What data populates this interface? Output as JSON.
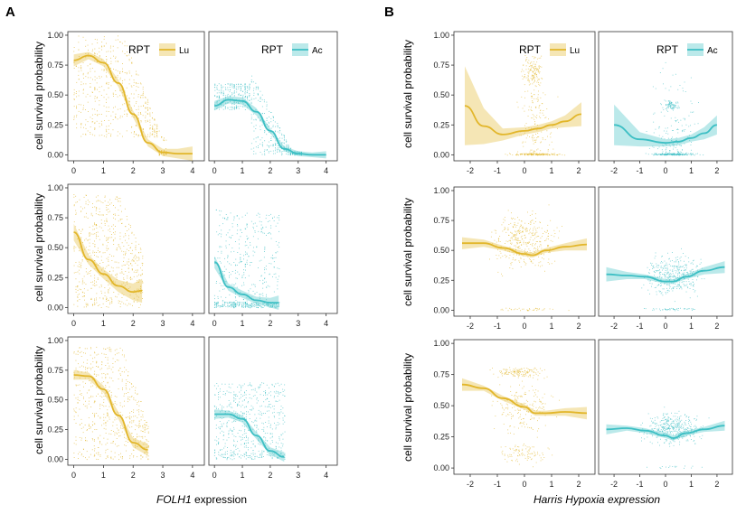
{
  "figure": {
    "panel_a_label": "A",
    "panel_b_label": "B",
    "ylabel": "cell survival probability",
    "a_xlabel_gene": "FOLH1",
    "a_xlabel_rest": " expression",
    "b_xlabel": "Harris Hypoxia expression",
    "legend_title": "RPT",
    "lu_label": "Lu",
    "ac_label": "Ac"
  },
  "colors": {
    "lu": "#E2B62A",
    "ac": "#3DBFC4"
  },
  "chart_data": [
    {
      "type": "scatter",
      "panel": "A",
      "row": 1,
      "series": "Lu",
      "legend": true,
      "xlabel": "FOLH1 expression",
      "ylabel": "cell survival probability",
      "xlim": [
        -0.2,
        4.4
      ],
      "ylim": [
        -0.05,
        1.03
      ],
      "xticks": [
        0,
        1,
        2,
        3,
        4
      ],
      "yticks": [
        "0.00",
        "0.25",
        "0.50",
        "0.75",
        "1.00"
      ],
      "fit": [
        [
          0,
          0.79
        ],
        [
          0.5,
          0.83
        ],
        [
          1,
          0.77
        ],
        [
          1.5,
          0.6
        ],
        [
          2,
          0.34
        ],
        [
          2.5,
          0.1
        ],
        [
          3,
          0.02
        ],
        [
          3.5,
          0.01
        ],
        [
          4,
          0.01
        ]
      ],
      "band": [
        [
          0,
          0.05
        ],
        [
          0.5,
          0.03
        ],
        [
          1,
          0.03
        ],
        [
          1.5,
          0.03
        ],
        [
          2,
          0.03
        ],
        [
          2.5,
          0.03
        ],
        [
          3,
          0.03
        ],
        [
          3.5,
          0.04
        ],
        [
          4,
          0.06
        ]
      ],
      "scatter": {
        "kind": "strip",
        "mode": "decline",
        "xmax": 3.1
      }
    },
    {
      "type": "scatter",
      "panel": "A",
      "row": 1,
      "series": "Ac",
      "legend": true,
      "xlabel": "FOLH1 expression",
      "ylabel": "cell survival probability",
      "xlim": [
        -0.2,
        4.4
      ],
      "ylim": [
        -0.05,
        1.03
      ],
      "xticks": [
        0,
        1,
        2,
        3,
        4
      ],
      "yticks": [
        "0.00",
        "0.25",
        "0.50",
        "0.75",
        "1.00"
      ],
      "fit": [
        [
          0,
          0.41
        ],
        [
          0.5,
          0.46
        ],
        [
          1,
          0.45
        ],
        [
          1.5,
          0.36
        ],
        [
          2,
          0.2
        ],
        [
          2.5,
          0.05
        ],
        [
          3,
          0.01
        ],
        [
          3.5,
          0.0
        ],
        [
          4,
          0.0
        ]
      ],
      "band": [
        [
          0,
          0.04
        ],
        [
          0.5,
          0.03
        ],
        [
          1,
          0.03
        ],
        [
          1.5,
          0.03
        ],
        [
          2,
          0.02
        ],
        [
          2.5,
          0.02
        ],
        [
          3,
          0.02
        ],
        [
          3.5,
          0.02
        ],
        [
          4,
          0.03
        ]
      ],
      "scatter": {
        "kind": "strip",
        "mode": "lowblock",
        "xmax": 3.1
      }
    },
    {
      "type": "scatter",
      "panel": "A",
      "row": 2,
      "series": "Lu",
      "legend": false,
      "xlabel": "FOLH1 expression",
      "ylabel": "cell survival probability",
      "xlim": [
        -0.2,
        4.4
      ],
      "ylim": [
        -0.05,
        1.03
      ],
      "xticks": [
        0,
        1,
        2,
        3,
        4
      ],
      "yticks": [
        "0.00",
        "0.25",
        "0.50",
        "0.75",
        "1.00"
      ],
      "fit": [
        [
          0,
          0.63
        ],
        [
          0.5,
          0.4
        ],
        [
          1,
          0.28
        ],
        [
          1.5,
          0.18
        ],
        [
          2,
          0.13
        ],
        [
          2.3,
          0.14
        ]
      ],
      "band": [
        [
          0,
          0.07
        ],
        [
          0.5,
          0.04
        ],
        [
          1,
          0.04
        ],
        [
          1.5,
          0.05
        ],
        [
          2,
          0.07
        ],
        [
          2.3,
          0.1
        ]
      ],
      "scatter": {
        "kind": "strip",
        "mode": "full",
        "xmax": 2.3
      }
    },
    {
      "type": "scatter",
      "panel": "A",
      "row": 2,
      "series": "Ac",
      "legend": false,
      "xlabel": "FOLH1 expression",
      "ylabel": "cell survival probability",
      "xlim": [
        -0.2,
        4.4
      ],
      "ylim": [
        -0.05,
        1.03
      ],
      "xticks": [
        0,
        1,
        2,
        3,
        4
      ],
      "yticks": [
        "0.00",
        "0.25",
        "0.50",
        "0.75",
        "1.00"
      ],
      "fit": [
        [
          0,
          0.38
        ],
        [
          0.5,
          0.17
        ],
        [
          1,
          0.11
        ],
        [
          1.5,
          0.06
        ],
        [
          2,
          0.04
        ],
        [
          2.3,
          0.04
        ]
      ],
      "band": [
        [
          0,
          0.05
        ],
        [
          0.5,
          0.03
        ],
        [
          1,
          0.03
        ],
        [
          1.5,
          0.03
        ],
        [
          2,
          0.04
        ],
        [
          2.3,
          0.06
        ]
      ],
      "scatter": {
        "kind": "strip",
        "mode": "low",
        "xmax": 2.3
      }
    },
    {
      "type": "scatter",
      "panel": "A",
      "row": 3,
      "series": "Lu",
      "legend": false,
      "xlabel": "FOLH1 expression",
      "ylabel": "cell survival probability",
      "xlim": [
        -0.2,
        4.4
      ],
      "ylim": [
        -0.05,
        1.03
      ],
      "xticks": [
        0,
        1,
        2,
        3,
        4
      ],
      "yticks": [
        "0.00",
        "0.25",
        "0.50",
        "0.75",
        "1.00"
      ],
      "fit": [
        [
          0,
          0.71
        ],
        [
          0.5,
          0.7
        ],
        [
          1,
          0.59
        ],
        [
          1.5,
          0.37
        ],
        [
          2,
          0.14
        ],
        [
          2.5,
          0.08
        ]
      ],
      "band": [
        [
          0,
          0.04
        ],
        [
          0.5,
          0.03
        ],
        [
          1,
          0.03
        ],
        [
          1.5,
          0.03
        ],
        [
          2,
          0.04
        ],
        [
          2.5,
          0.05
        ]
      ],
      "scatter": {
        "kind": "strip",
        "mode": "full",
        "xmax": 2.5
      }
    },
    {
      "type": "scatter",
      "panel": "A",
      "row": 3,
      "series": "Ac",
      "legend": false,
      "xlabel": "FOLH1 expression",
      "ylabel": "cell survival probability",
      "xlim": [
        -0.2,
        4.4
      ],
      "ylim": [
        -0.05,
        1.03
      ],
      "xticks": [
        0,
        1,
        2,
        3,
        4
      ],
      "yticks": [
        "0.00",
        "0.25",
        "0.50",
        "0.75",
        "1.00"
      ],
      "fit": [
        [
          0,
          0.38
        ],
        [
          0.5,
          0.38
        ],
        [
          1,
          0.34
        ],
        [
          1.5,
          0.2
        ],
        [
          2,
          0.07
        ],
        [
          2.5,
          0.02
        ]
      ],
      "band": [
        [
          0,
          0.04
        ],
        [
          0.5,
          0.03
        ],
        [
          1,
          0.03
        ],
        [
          1.5,
          0.03
        ],
        [
          2,
          0.03
        ],
        [
          2.5,
          0.04
        ]
      ],
      "scatter": {
        "kind": "strip",
        "mode": "mid",
        "xmax": 2.5
      }
    },
    {
      "type": "scatter",
      "panel": "B",
      "row": 1,
      "series": "Lu",
      "legend": true,
      "xlabel": "Harris Hypoxia expression",
      "ylabel": "cell survival probability",
      "xlim": [
        -2.6,
        2.6
      ],
      "ylim": [
        -0.05,
        1.03
      ],
      "xticks": [
        -2,
        -1,
        0,
        1,
        2
      ],
      "yticks": [
        "0.00",
        "0.25",
        "0.50",
        "0.75",
        "1.00"
      ],
      "fit": [
        [
          -2.2,
          0.41
        ],
        [
          -1.5,
          0.24
        ],
        [
          -0.8,
          0.17
        ],
        [
          0,
          0.2
        ],
        [
          0.5,
          0.22
        ],
        [
          1,
          0.25
        ],
        [
          1.5,
          0.28
        ],
        [
          2.1,
          0.34
        ]
      ],
      "band": [
        [
          -2.2,
          0.33
        ],
        [
          -1.5,
          0.15
        ],
        [
          -0.8,
          0.05
        ],
        [
          0,
          0.03
        ],
        [
          0.5,
          0.03
        ],
        [
          1,
          0.03
        ],
        [
          1.5,
          0.05
        ],
        [
          2.1,
          0.1
        ]
      ],
      "scatter": {
        "kind": "cloud",
        "profile": "b1lu"
      }
    },
    {
      "type": "scatter",
      "panel": "B",
      "row": 1,
      "series": "Ac",
      "legend": true,
      "xlabel": "Harris Hypoxia expression",
      "ylabel": "cell survival probability",
      "xlim": [
        -2.6,
        2.6
      ],
      "ylim": [
        -0.05,
        1.03
      ],
      "xticks": [
        -2,
        -1,
        0,
        1,
        2
      ],
      "yticks": [
        "0.00",
        "0.25",
        "0.50",
        "0.75",
        "1.00"
      ],
      "fit": [
        [
          -2.0,
          0.25
        ],
        [
          -1,
          0.13
        ],
        [
          0,
          0.1
        ],
        [
          0.5,
          0.11
        ],
        [
          1,
          0.14
        ],
        [
          1.5,
          0.18
        ],
        [
          2.0,
          0.25
        ]
      ],
      "band": [
        [
          -2.0,
          0.17
        ],
        [
          -1,
          0.06
        ],
        [
          0,
          0.03
        ],
        [
          0.5,
          0.03
        ],
        [
          1,
          0.03
        ],
        [
          1.5,
          0.05
        ],
        [
          2.0,
          0.08
        ]
      ],
      "scatter": {
        "kind": "cloud",
        "profile": "b1ac"
      }
    },
    {
      "type": "scatter",
      "panel": "B",
      "row": 2,
      "series": "Lu",
      "legend": false,
      "xlabel": "Harris Hypoxia expression",
      "ylabel": "cell survival probability",
      "xlim": [
        -2.6,
        2.6
      ],
      "ylim": [
        -0.05,
        1.03
      ],
      "xticks": [
        -2,
        -1,
        0,
        1,
        2
      ],
      "yticks": [
        "0.00",
        "0.25",
        "0.50",
        "0.75",
        "1.00"
      ],
      "fit": [
        [
          -2.3,
          0.56
        ],
        [
          -1.5,
          0.56
        ],
        [
          -0.8,
          0.52
        ],
        [
          0,
          0.47
        ],
        [
          0.3,
          0.46
        ],
        [
          0.8,
          0.5
        ],
        [
          1.5,
          0.53
        ],
        [
          2.3,
          0.55
        ]
      ],
      "band": [
        [
          -2.3,
          0.05
        ],
        [
          -1.5,
          0.03
        ],
        [
          -0.8,
          0.02
        ],
        [
          0,
          0.02
        ],
        [
          0.3,
          0.02
        ],
        [
          0.8,
          0.02
        ],
        [
          1.5,
          0.03
        ],
        [
          2.3,
          0.05
        ]
      ],
      "scatter": {
        "kind": "cloud",
        "profile": "b2lu"
      }
    },
    {
      "type": "scatter",
      "panel": "B",
      "row": 2,
      "series": "Ac",
      "legend": false,
      "xlabel": "Harris Hypoxia expression",
      "ylabel": "cell survival probability",
      "xlim": [
        -2.6,
        2.6
      ],
      "ylim": [
        -0.05,
        1.03
      ],
      "xticks": [
        -2,
        -1,
        0,
        1,
        2
      ],
      "yticks": [
        "0.00",
        "0.25",
        "0.50",
        "0.75",
        "1.00"
      ],
      "fit": [
        [
          -2.3,
          0.3
        ],
        [
          -1.5,
          0.29
        ],
        [
          -0.8,
          0.28
        ],
        [
          0,
          0.24
        ],
        [
          0.3,
          0.24
        ],
        [
          0.8,
          0.28
        ],
        [
          1.5,
          0.33
        ],
        [
          2.3,
          0.36
        ]
      ],
      "band": [
        [
          -2.3,
          0.06
        ],
        [
          -1.5,
          0.03
        ],
        [
          -0.8,
          0.02
        ],
        [
          0,
          0.02
        ],
        [
          0.3,
          0.02
        ],
        [
          0.8,
          0.02
        ],
        [
          1.5,
          0.03
        ],
        [
          2.3,
          0.05
        ]
      ],
      "scatter": {
        "kind": "cloud",
        "profile": "b2ac"
      }
    },
    {
      "type": "scatter",
      "panel": "B",
      "row": 3,
      "series": "Lu",
      "legend": false,
      "xlabel": "Harris Hypoxia expression",
      "ylabel": "cell survival probability",
      "xlim": [
        -2.6,
        2.6
      ],
      "ylim": [
        -0.05,
        1.03
      ],
      "xticks": [
        -2,
        -1,
        0,
        1,
        2
      ],
      "yticks": [
        "0.00",
        "0.25",
        "0.50",
        "0.75",
        "1.00"
      ],
      "fit": [
        [
          -2.3,
          0.67
        ],
        [
          -1.5,
          0.64
        ],
        [
          -0.8,
          0.56
        ],
        [
          0,
          0.49
        ],
        [
          0.4,
          0.44
        ],
        [
          0.8,
          0.44
        ],
        [
          1.5,
          0.45
        ],
        [
          2.3,
          0.44
        ]
      ],
      "band": [
        [
          -2.3,
          0.05
        ],
        [
          -1.5,
          0.02
        ],
        [
          -0.8,
          0.02
        ],
        [
          0,
          0.02
        ],
        [
          0.4,
          0.02
        ],
        [
          0.8,
          0.02
        ],
        [
          1.5,
          0.03
        ],
        [
          2.3,
          0.05
        ]
      ],
      "scatter": {
        "kind": "cloud",
        "profile": "b3lu"
      }
    },
    {
      "type": "scatter",
      "panel": "B",
      "row": 3,
      "series": "Ac",
      "legend": false,
      "xlabel": "Harris Hypoxia expression",
      "ylabel": "cell survival probability",
      "xlim": [
        -2.6,
        2.6
      ],
      "ylim": [
        -0.05,
        1.03
      ],
      "xticks": [
        -2,
        -1,
        0,
        1,
        2
      ],
      "yticks": [
        "0.00",
        "0.25",
        "0.50",
        "0.75",
        "1.00"
      ],
      "fit": [
        [
          -2.3,
          0.31
        ],
        [
          -1.5,
          0.32
        ],
        [
          -0.8,
          0.3
        ],
        [
          0,
          0.26
        ],
        [
          0.3,
          0.24
        ],
        [
          0.8,
          0.28
        ],
        [
          1.5,
          0.31
        ],
        [
          2.3,
          0.34
        ]
      ],
      "band": [
        [
          -2.3,
          0.04
        ],
        [
          -1.5,
          0.02
        ],
        [
          -0.8,
          0.02
        ],
        [
          0,
          0.02
        ],
        [
          0.3,
          0.02
        ],
        [
          0.8,
          0.02
        ],
        [
          1.5,
          0.02
        ],
        [
          2.3,
          0.04
        ]
      ],
      "scatter": {
        "kind": "cloud",
        "profile": "b3ac"
      }
    }
  ]
}
